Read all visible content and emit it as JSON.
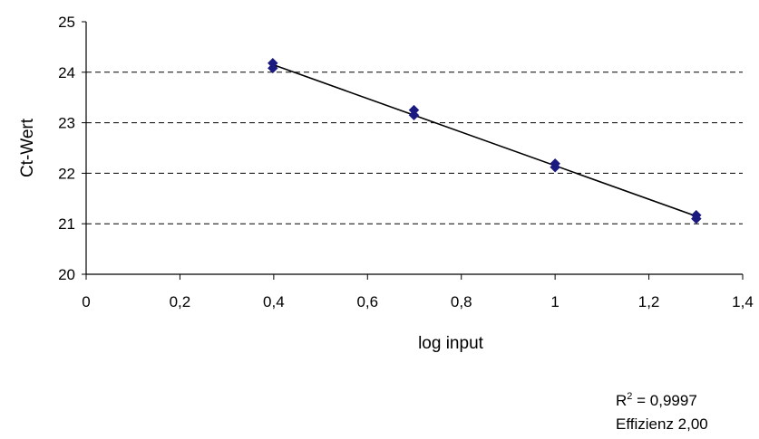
{
  "chart_data": {
    "type": "scatter",
    "xlabel": "log input",
    "ylabel": "Ct-Wert",
    "xlim": [
      0,
      1.4
    ],
    "ylim": [
      20,
      25
    ],
    "x_ticks": [
      0,
      0.2,
      0.4,
      0.6,
      0.8,
      1,
      1.2,
      1.4
    ],
    "x_tick_labels": [
      "0",
      "0,2",
      "0,4",
      "0,6",
      "0,8",
      "1",
      "1,2",
      "1,4"
    ],
    "y_ticks": [
      20,
      21,
      22,
      23,
      24,
      25
    ],
    "y_tick_labels": [
      "20",
      "21",
      "22",
      "23",
      "24",
      "25"
    ],
    "grid": "horizontal dashed",
    "marker_color": "#1a1a80",
    "series": [
      {
        "points": [
          {
            "x": 0.398,
            "y": 24.18
          },
          {
            "x": 0.398,
            "y": 24.08
          },
          {
            "x": 0.699,
            "y": 23.25
          },
          {
            "x": 0.699,
            "y": 23.15
          },
          {
            "x": 1.0,
            "y": 22.19
          },
          {
            "x": 1.0,
            "y": 22.12
          },
          {
            "x": 1.301,
            "y": 21.17
          },
          {
            "x": 1.301,
            "y": 21.1
          }
        ]
      }
    ],
    "trendline": {
      "x": [
        0.398,
        1.301
      ],
      "y": [
        24.15,
        21.15
      ]
    },
    "annotations": {
      "r2_prefix": "R",
      "r2_sup": "2",
      "r2_value": " = 0,9997",
      "efficiency": "Effizienz 2,00"
    }
  }
}
